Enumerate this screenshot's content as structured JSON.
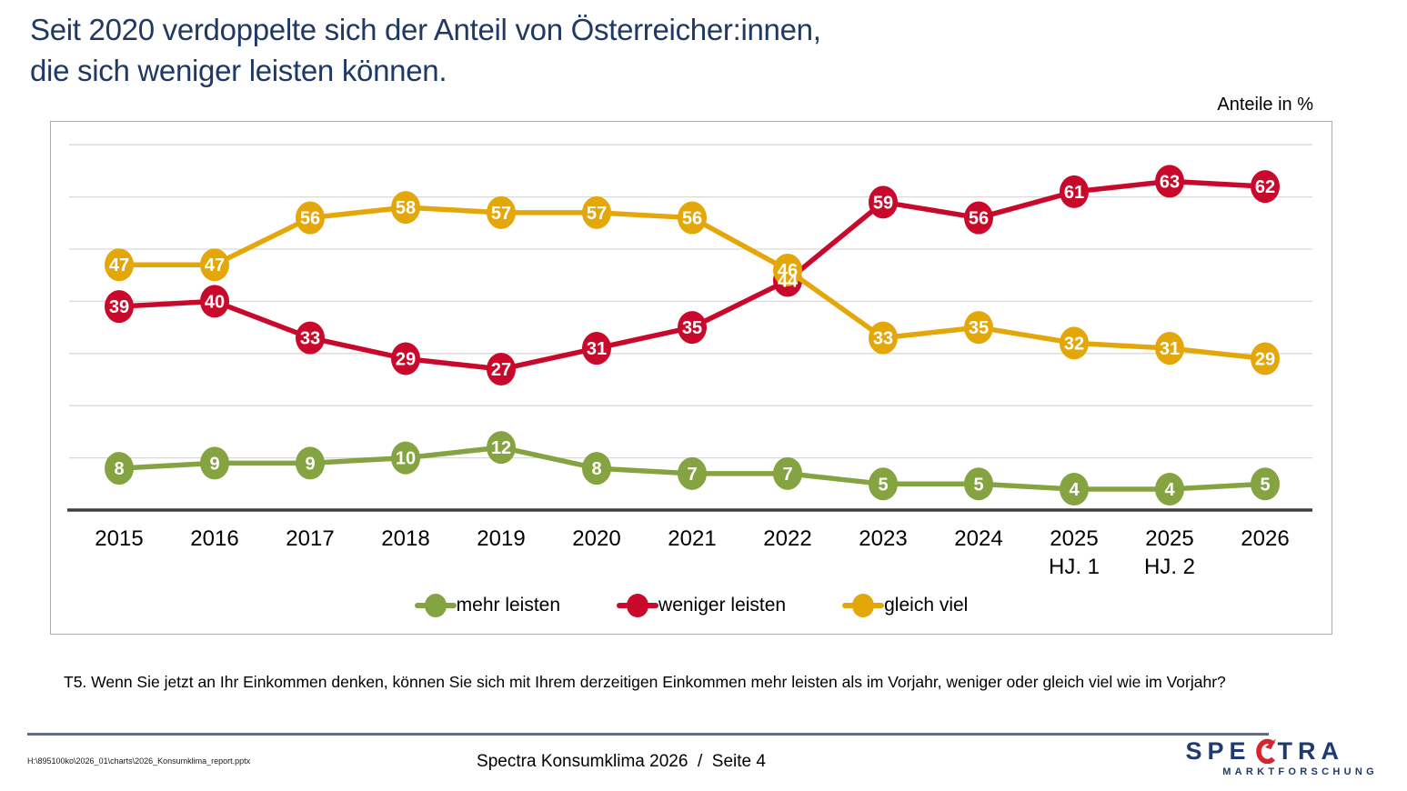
{
  "title": {
    "line1": "Seit 2020 verdoppelte sich der Anteil von Österreicher:innen,",
    "line2": "die sich weniger leisten können."
  },
  "chart_data": {
    "type": "line",
    "unit_label": "Anteile in %",
    "categories": [
      "2015",
      "2016",
      "2017",
      "2018",
      "2019",
      "2020",
      "2021",
      "2022",
      "2023",
      "2024",
      "2025\nHJ. 1",
      "2025\nHJ. 2",
      "2026"
    ],
    "series": [
      {
        "name": "mehr leisten",
        "color": "#85A341",
        "values": [
          8,
          9,
          9,
          10,
          12,
          8,
          7,
          7,
          5,
          5,
          4,
          4,
          5
        ]
      },
      {
        "name": "weniger leisten",
        "color": "#C9092C",
        "values": [
          39,
          40,
          33,
          29,
          27,
          31,
          35,
          44,
          59,
          56,
          61,
          63,
          62
        ]
      },
      {
        "name": "gleich viel",
        "color": "#E4A70A",
        "values": [
          47,
          47,
          56,
          58,
          57,
          57,
          56,
          46,
          33,
          35,
          32,
          31,
          29
        ]
      }
    ],
    "ylim": [
      0,
      70
    ],
    "grid_step": 10,
    "grid": true,
    "legend_position": "bottom",
    "colors": {
      "grid": "#D9D9D9",
      "axis": "#3F3F3F",
      "label_text": "#FFFFFF"
    }
  },
  "question": "T5. Wenn Sie jetzt an Ihr Einkommen denken, können Sie sich mit Ihrem derzeitigen Einkommen mehr leisten als im Vorjahr, weniger oder gleich viel wie im Vorjahr?",
  "footer": {
    "file_path": "H:\\895100ko\\2026_01\\charts\\2026_Konsumklima_report.pptx",
    "center": "Spectra Konsumklima 2026  /  Seite 4"
  },
  "logo": {
    "part1": "SPE",
    "part2": "TRA",
    "subtitle": "MARKTFORSCHUNG",
    "accent_color": "#D6252E",
    "text_color": "#1E3A6E"
  }
}
